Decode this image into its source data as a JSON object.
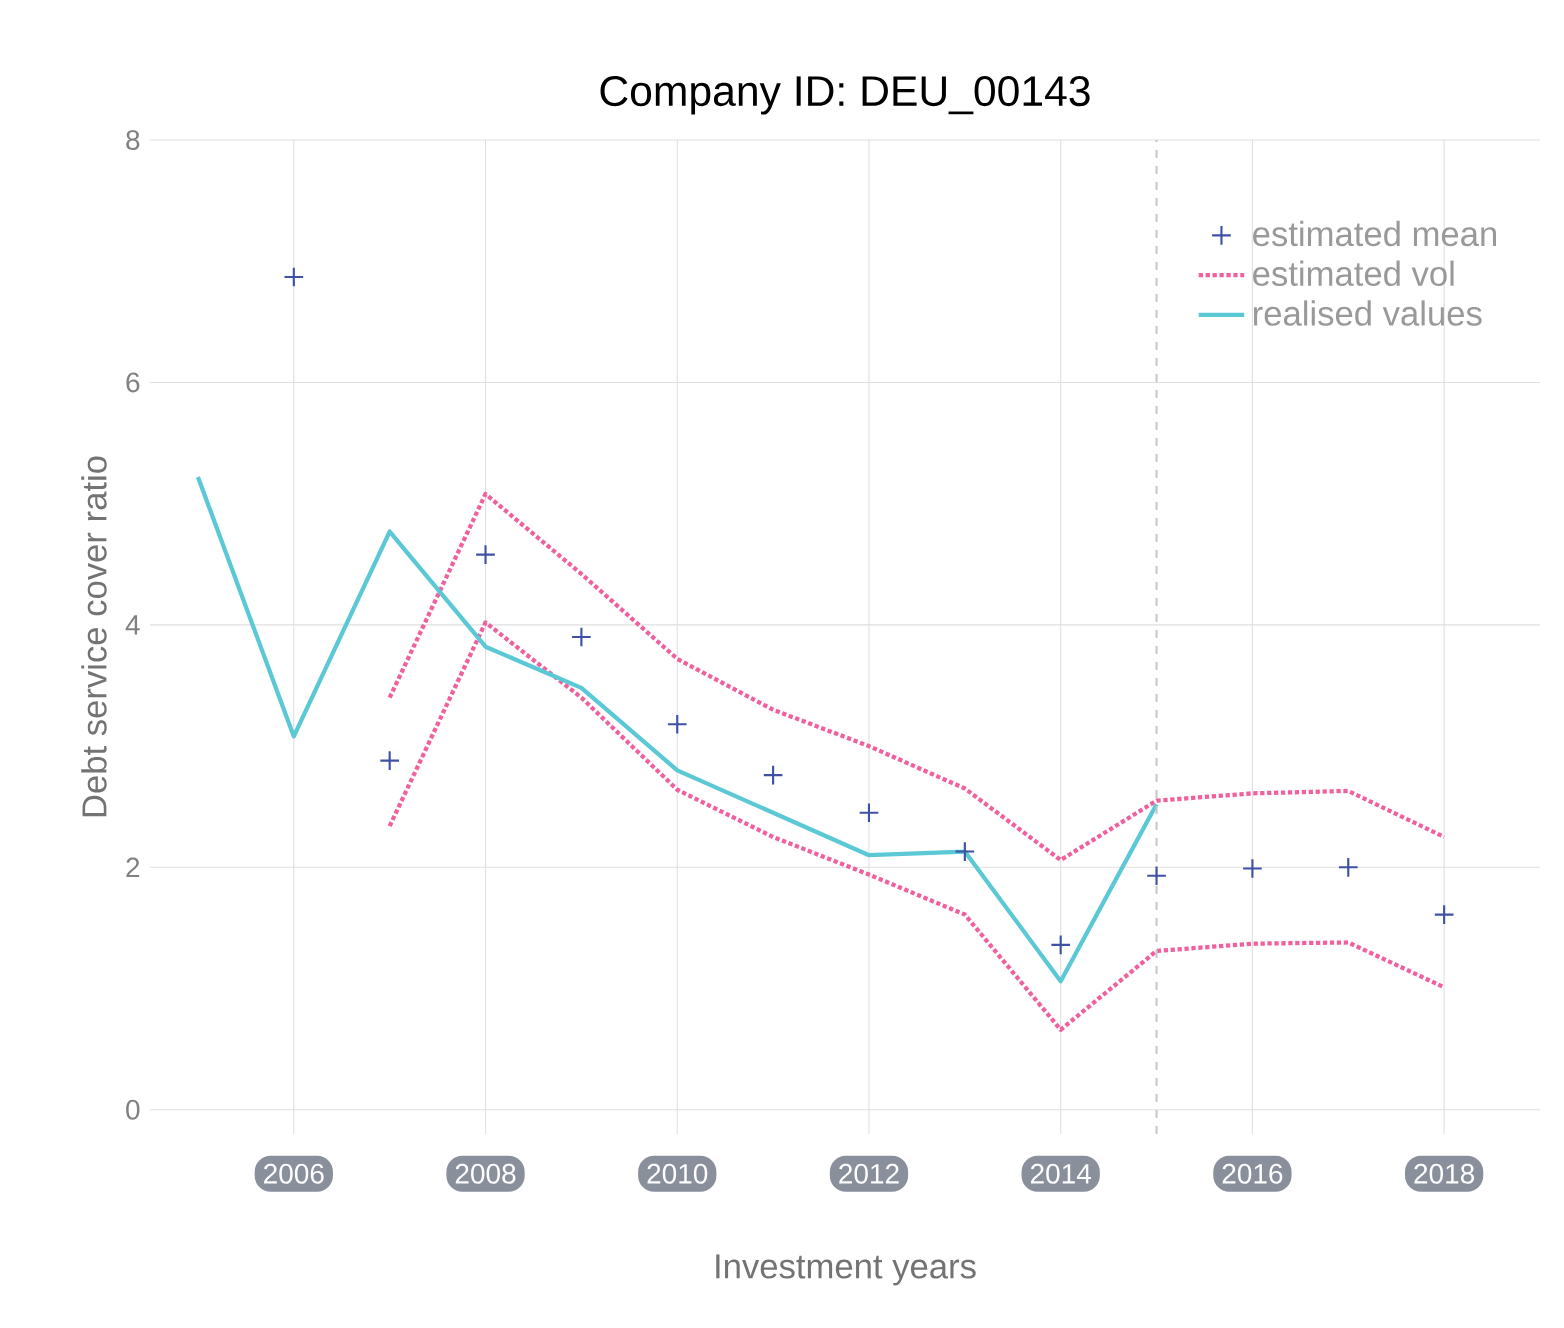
{
  "chart_data": {
    "type": "line",
    "title": "Company ID: DEU_00143",
    "xlabel": "Investment years",
    "ylabel": "Debt service cover ratio",
    "xlim": [
      2004.5,
      2019
    ],
    "xticks": [
      2006,
      2008,
      2010,
      2012,
      2014,
      2016,
      2018
    ],
    "ylim": [
      -0.2,
      8
    ],
    "yticks": [
      0,
      2,
      4,
      6,
      8
    ],
    "grid": true,
    "legend": "top right",
    "ref_lines": [
      {
        "axis": "x",
        "value": 2015,
        "color": "#c8c8c8",
        "line_style": "dashed"
      }
    ],
    "series": [
      {
        "name": "estimated mean",
        "type": "scatter",
        "marker": "cross",
        "color": "#3f51a3",
        "x": [
          2006,
          2007,
          2008,
          2009,
          2010,
          2011,
          2012,
          2013,
          2014,
          2015,
          2016,
          2017,
          2018
        ],
        "values": [
          6.87,
          2.88,
          4.58,
          3.9,
          3.18,
          2.76,
          2.45,
          2.13,
          1.36,
          1.93,
          1.99,
          2.0,
          1.61
        ]
      },
      {
        "name": "estimated vol",
        "line_style": "dotted",
        "color": "#f0609e",
        "x": [
          2007,
          2008,
          2009,
          2010,
          2011,
          2012,
          2013,
          2014,
          2015,
          2016,
          2017,
          2018
        ],
        "values": [
          3.4,
          5.08,
          4.42,
          3.72,
          3.3,
          3.0,
          2.65,
          2.06,
          2.55,
          2.61,
          2.63,
          2.25
        ]
      },
      {
        "line_style": "dotted",
        "color": "#f0609e",
        "x": [
          2007,
          2008,
          2009,
          2010,
          2011,
          2012,
          2013,
          2014,
          2015,
          2016,
          2017,
          2018
        ],
        "values": [
          2.34,
          4.02,
          3.4,
          2.64,
          2.25,
          1.94,
          1.61,
          0.66,
          1.31,
          1.37,
          1.38,
          1.01
        ]
      },
      {
        "name": "realised values",
        "line_style": "solid",
        "color": "#5bc8d6",
        "x": [
          2005,
          2006,
          2007,
          2008,
          2009,
          2010,
          2011,
          2012,
          2013,
          2014,
          2015
        ],
        "values": [
          5.22,
          3.08,
          4.77,
          3.82,
          3.48,
          2.8,
          2.45,
          2.1,
          2.13,
          1.06,
          2.52
        ]
      }
    ]
  }
}
